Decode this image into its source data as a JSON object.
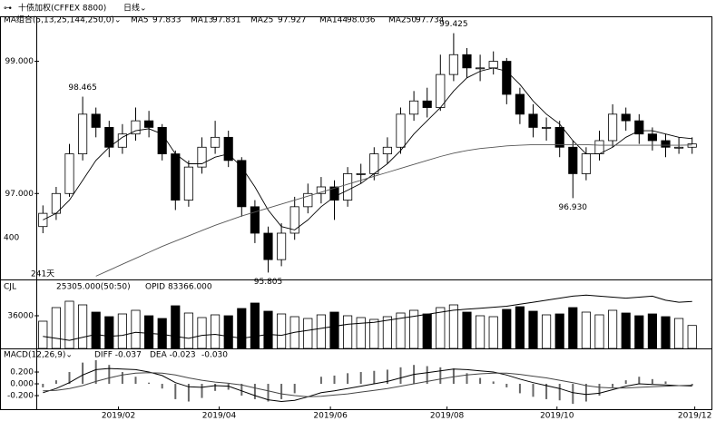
{
  "header": {
    "icon": "⊶",
    "instrument": "十债加权(CFFEX 8800)",
    "period": "日线⌄"
  },
  "chart_data": {
    "type": "candlestick",
    "ma_settings": "MA组合(5,13,25,144,250,0)⌄",
    "ma_readouts": [
      {
        "name": "MA5",
        "value": "97.833"
      },
      {
        "name": "MA13",
        "value": "97.831"
      },
      {
        "name": "MA25",
        "value": "97.927"
      },
      {
        "name": "MA144",
        "value": "98.036"
      },
      {
        "name": "MA250",
        "value": "97.734"
      }
    ],
    "annotations": [
      "400",
      "241天"
    ],
    "ylim": [
      95.7,
      99.68
    ],
    "yticks": [
      {
        "value": 99,
        "label": "99.000"
      },
      {
        "value": 97,
        "label": "97.000"
      }
    ],
    "xlim": [
      -0.5,
      49.5
    ],
    "xticks": [
      {
        "value": 5.7,
        "label": "2019/02"
      },
      {
        "value": 13.3,
        "label": "2019/04"
      },
      {
        "value": 21.7,
        "label": "2019/06"
      },
      {
        "value": 30.5,
        "label": "2019/08"
      },
      {
        "value": 38.8,
        "label": "2019/10"
      },
      {
        "value": 49.2,
        "label": "2019/12"
      }
    ],
    "candles": [
      {
        "o": 96.5,
        "h": 96.82,
        "l": 96.4,
        "c": 96.7
      },
      {
        "o": 96.7,
        "h": 97.1,
        "l": 96.6,
        "c": 97.0
      },
      {
        "o": 97.0,
        "h": 97.75,
        "l": 96.95,
        "c": 97.6
      },
      {
        "o": 97.6,
        "h": 98.465,
        "l": 97.5,
        "c": 98.2,
        "h_label": "98.465"
      },
      {
        "o": 98.2,
        "h": 98.3,
        "l": 97.85,
        "c": 98.0
      },
      {
        "o": 98.0,
        "h": 98.1,
        "l": 97.55,
        "c": 97.7
      },
      {
        "o": 97.7,
        "h": 98.05,
        "l": 97.6,
        "c": 97.9
      },
      {
        "o": 97.9,
        "h": 98.3,
        "l": 97.8,
        "c": 98.1
      },
      {
        "o": 98.1,
        "h": 98.25,
        "l": 97.85,
        "c": 98.0
      },
      {
        "o": 98.0,
        "h": 98.05,
        "l": 97.5,
        "c": 97.6
      },
      {
        "o": 97.6,
        "h": 97.65,
        "l": 96.75,
        "c": 96.9
      },
      {
        "o": 96.9,
        "h": 97.5,
        "l": 96.8,
        "c": 97.4
      },
      {
        "o": 97.4,
        "h": 97.85,
        "l": 97.3,
        "c": 97.7
      },
      {
        "o": 97.7,
        "h": 98.1,
        "l": 97.6,
        "c": 97.85
      },
      {
        "o": 97.85,
        "h": 97.95,
        "l": 97.4,
        "c": 97.5
      },
      {
        "o": 97.5,
        "h": 97.55,
        "l": 96.65,
        "c": 96.8
      },
      {
        "o": 96.8,
        "h": 96.9,
        "l": 96.25,
        "c": 96.4
      },
      {
        "o": 96.4,
        "h": 96.5,
        "l": 95.805,
        "c": 96.0,
        "l_label": "95.805"
      },
      {
        "o": 96.0,
        "h": 96.55,
        "l": 95.9,
        "c": 96.4
      },
      {
        "o": 96.4,
        "h": 96.95,
        "l": 96.3,
        "c": 96.8
      },
      {
        "o": 96.8,
        "h": 97.15,
        "l": 96.7,
        "c": 97.0
      },
      {
        "o": 97.0,
        "h": 97.25,
        "l": 96.85,
        "c": 97.1
      },
      {
        "o": 97.1,
        "h": 97.2,
        "l": 96.6,
        "c": 96.9
      },
      {
        "o": 96.9,
        "h": 97.4,
        "l": 96.8,
        "c": 97.3
      },
      {
        "o": 97.3,
        "h": 97.45,
        "l": 97.15,
        "c": 97.3
      },
      {
        "o": 97.3,
        "h": 97.7,
        "l": 97.2,
        "c": 97.6
      },
      {
        "o": 97.6,
        "h": 97.85,
        "l": 97.45,
        "c": 97.7
      },
      {
        "o": 97.7,
        "h": 98.3,
        "l": 97.6,
        "c": 98.2
      },
      {
        "o": 98.2,
        "h": 98.55,
        "l": 98.1,
        "c": 98.4
      },
      {
        "o": 98.4,
        "h": 98.6,
        "l": 98.15,
        "c": 98.3
      },
      {
        "o": 98.3,
        "h": 99.1,
        "l": 98.25,
        "c": 98.8
      },
      {
        "o": 98.8,
        "h": 99.425,
        "l": 98.7,
        "c": 99.1,
        "h_label": "99.425"
      },
      {
        "o": 99.1,
        "h": 99.2,
        "l": 98.75,
        "c": 98.9
      },
      {
        "o": 98.9,
        "h": 99.1,
        "l": 98.7,
        "c": 98.9
      },
      {
        "o": 98.9,
        "h": 99.15,
        "l": 98.8,
        "c": 99.0
      },
      {
        "o": 99.0,
        "h": 99.05,
        "l": 98.35,
        "c": 98.5
      },
      {
        "o": 98.5,
        "h": 98.6,
        "l": 98.05,
        "c": 98.2
      },
      {
        "o": 98.2,
        "h": 98.35,
        "l": 97.85,
        "c": 98.0
      },
      {
        "o": 98.0,
        "h": 98.15,
        "l": 97.8,
        "c": 98.0
      },
      {
        "o": 98.0,
        "h": 98.1,
        "l": 97.55,
        "c": 97.7
      },
      {
        "o": 97.7,
        "h": 97.8,
        "l": 96.93,
        "c": 97.3,
        "l_label": "96.930"
      },
      {
        "o": 97.3,
        "h": 97.7,
        "l": 97.2,
        "c": 97.6
      },
      {
        "o": 97.6,
        "h": 97.95,
        "l": 97.5,
        "c": 97.8
      },
      {
        "o": 97.8,
        "h": 98.35,
        "l": 97.7,
        "c": 98.2
      },
      {
        "o": 98.2,
        "h": 98.3,
        "l": 97.95,
        "c": 98.1
      },
      {
        "o": 98.1,
        "h": 98.2,
        "l": 97.75,
        "c": 97.9
      },
      {
        "o": 97.9,
        "h": 98.0,
        "l": 97.65,
        "c": 97.8
      },
      {
        "o": 97.8,
        "h": 97.9,
        "l": 97.55,
        "c": 97.7
      },
      {
        "o": 97.7,
        "h": 97.85,
        "l": 97.6,
        "c": 97.7
      },
      {
        "o": 97.7,
        "h": 97.85,
        "l": 97.6,
        "c": 97.75
      }
    ],
    "lines": [
      {
        "color": "#000000",
        "values": [
          96.6,
          96.7,
          96.9,
          97.2,
          97.5,
          97.7,
          97.85,
          97.95,
          97.98,
          97.9,
          97.6,
          97.45,
          97.45,
          97.55,
          97.6,
          97.4,
          97.1,
          96.75,
          96.5,
          96.45,
          96.6,
          96.8,
          96.95,
          97.05,
          97.15,
          97.3,
          97.45,
          97.65,
          97.9,
          98.1,
          98.3,
          98.55,
          98.75,
          98.85,
          98.9,
          98.85,
          98.65,
          98.4,
          98.2,
          98.05,
          97.8,
          97.6,
          97.6,
          97.7,
          97.85,
          97.95,
          97.95,
          97.9,
          97.85,
          97.83
        ]
      },
      {
        "color": "#555555",
        "values": [
          null,
          null,
          null,
          null,
          95.75,
          95.84,
          95.93,
          96.02,
          96.11,
          96.2,
          96.28,
          96.36,
          96.44,
          96.52,
          96.59,
          96.66,
          96.72,
          96.78,
          96.84,
          96.9,
          96.96,
          97.02,
          97.08,
          97.14,
          97.2,
          97.26,
          97.32,
          97.38,
          97.44,
          97.5,
          97.56,
          97.61,
          97.65,
          97.68,
          97.7,
          97.72,
          97.73,
          97.74,
          97.74,
          97.74,
          97.74,
          97.74,
          97.73,
          97.73,
          97.73,
          97.73,
          97.73,
          97.73,
          97.73,
          97.734
        ]
      }
    ],
    "volume": {
      "title": "CJL",
      "readout": "25305.000(50:50)",
      "oi_readout": "OPID 83366.000",
      "ylim": [
        0,
        62000
      ],
      "yticks": [
        36000
      ],
      "y2lim": [
        60000,
        88000
      ],
      "values": [
        30000,
        45000,
        52000,
        48000,
        40000,
        35000,
        38000,
        42000,
        36000,
        33000,
        47000,
        39000,
        34000,
        37000,
        36000,
        44000,
        50000,
        41000,
        38000,
        35000,
        33000,
        37000,
        40000,
        36000,
        34000,
        32000,
        35000,
        39000,
        42000,
        38000,
        45000,
        48000,
        40000,
        36000,
        35000,
        43000,
        46000,
        41000,
        37000,
        38000,
        45000,
        40000,
        37000,
        42000,
        39000,
        36000,
        38000,
        35000,
        33000,
        25305
      ],
      "oi_values": [
        66000,
        65000,
        64000,
        65500,
        67000,
        66000,
        66500,
        68000,
        67500,
        67000,
        66000,
        65000,
        66500,
        67000,
        66000,
        65000,
        66000,
        67000,
        66500,
        68000,
        69000,
        70000,
        71000,
        72000,
        72500,
        73000,
        74000,
        75000,
        76000,
        77000,
        78000,
        79000,
        79500,
        80000,
        80500,
        81000,
        82000,
        83000,
        84000,
        85000,
        86000,
        86500,
        86000,
        85500,
        85000,
        85500,
        86000,
        84000,
        83000,
        83366
      ]
    },
    "macd": {
      "title": "MACD(12,26,9)⌄",
      "diff_label": "DIFF -0.037",
      "dea_label": "DEA -0.023",
      "macd_label": "-0.030",
      "ylim": [
        -0.415,
        0.385
      ],
      "yticks": [
        {
          "value": 0.2,
          "label": "0.200"
        },
        {
          "value": 0,
          "label": "0.000"
        },
        {
          "value": -0.2,
          "label": "-0.200"
        }
      ],
      "diff": [
        -0.15,
        -0.08,
        0.02,
        0.15,
        0.24,
        0.26,
        0.25,
        0.24,
        0.2,
        0.14,
        0.02,
        -0.05,
        -0.06,
        -0.03,
        -0.04,
        -0.12,
        -0.2,
        -0.27,
        -0.3,
        -0.28,
        -0.22,
        -0.15,
        -0.12,
        -0.08,
        -0.04,
        0.0,
        0.04,
        0.1,
        0.16,
        0.19,
        0.22,
        0.25,
        0.24,
        0.22,
        0.2,
        0.15,
        0.08,
        0.02,
        -0.03,
        -0.08,
        -0.15,
        -0.18,
        -0.16,
        -0.1,
        -0.04,
        0.0,
        -0.01,
        -0.02,
        -0.03,
        -0.037
      ],
      "dea": [
        -0.12,
        -0.11,
        -0.08,
        -0.03,
        0.04,
        0.1,
        0.15,
        0.18,
        0.19,
        0.18,
        0.15,
        0.1,
        0.06,
        0.03,
        0.01,
        -0.02,
        -0.07,
        -0.12,
        -0.17,
        -0.2,
        -0.22,
        -0.21,
        -0.19,
        -0.17,
        -0.14,
        -0.11,
        -0.08,
        -0.04,
        0.0,
        0.04,
        0.08,
        0.12,
        0.15,
        0.17,
        0.18,
        0.18,
        0.16,
        0.13,
        0.1,
        0.06,
        0.02,
        -0.03,
        -0.06,
        -0.07,
        -0.07,
        -0.06,
        -0.05,
        -0.04,
        -0.03,
        -0.023
      ],
      "hist": [
        -0.06,
        0.06,
        0.2,
        0.36,
        0.4,
        0.32,
        0.2,
        0.12,
        0.02,
        -0.08,
        -0.26,
        -0.3,
        -0.24,
        -0.12,
        -0.1,
        -0.2,
        -0.26,
        -0.3,
        -0.26,
        -0.16,
        0.0,
        0.12,
        0.14,
        0.18,
        0.2,
        0.22,
        0.24,
        0.28,
        0.32,
        0.3,
        0.28,
        0.26,
        0.18,
        0.1,
        0.04,
        -0.06,
        -0.16,
        -0.22,
        -0.26,
        -0.28,
        -0.34,
        -0.3,
        -0.2,
        -0.06,
        0.06,
        0.12,
        0.08,
        0.04,
        0.0,
        -0.03
      ]
    }
  }
}
